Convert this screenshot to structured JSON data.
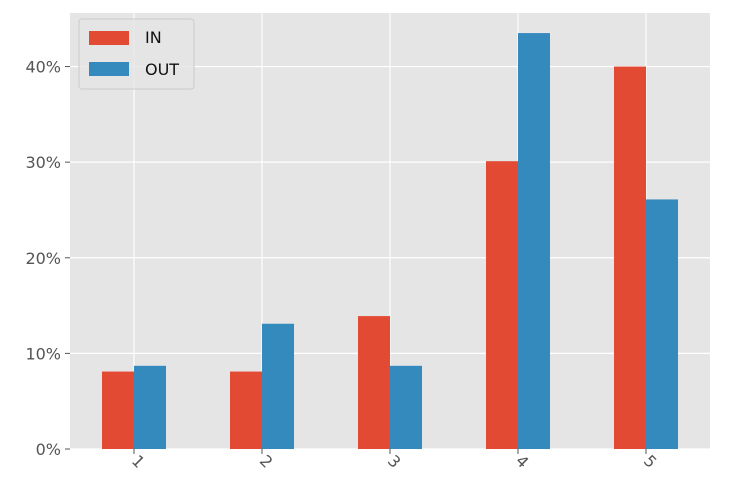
{
  "chart_data": {
    "type": "bar",
    "categories": [
      "1",
      "2",
      "3",
      "4",
      "5"
    ],
    "series": [
      {
        "name": "IN",
        "values": [
          8.1,
          8.1,
          13.9,
          30.1,
          40.0
        ],
        "color": "#e24a33"
      },
      {
        "name": "OUT",
        "values": [
          8.7,
          13.1,
          8.7,
          43.5,
          26.1
        ],
        "color": "#348abd"
      }
    ],
    "yticks": [
      0,
      10,
      20,
      30,
      40
    ],
    "ytick_labels": [
      "0%",
      "10%",
      "20%",
      "30%",
      "40%"
    ],
    "ylim": [
      0,
      45.6
    ],
    "grid": true,
    "legend_position": "top-left",
    "plot_background": "#e5e5e5",
    "grid_color": "#ffffff",
    "tick_label_color": "#555555",
    "xtick_rotation": "45 degrees"
  }
}
